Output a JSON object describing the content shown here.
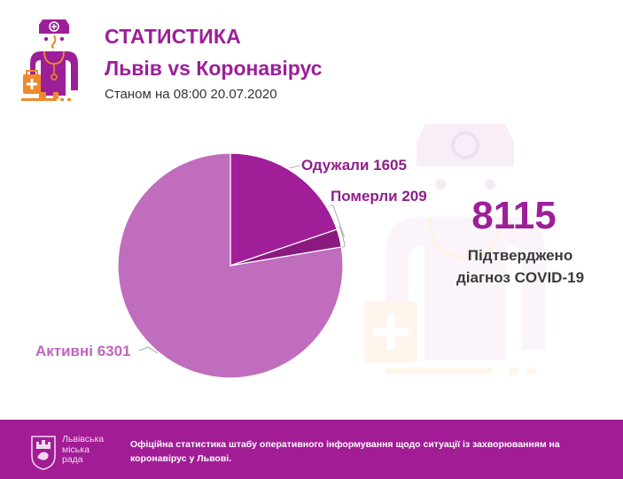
{
  "header": {
    "title": "СТАТИСТИКА",
    "subtitle": "Львів vs Коронавірус",
    "date": "Станом на 08:00 20.07.2020"
  },
  "summary": {
    "total": "8115",
    "caption_line1": "Підтверджено",
    "caption_line2": "діагноз COVID-19"
  },
  "labels": {
    "recovered": "Одужали 1605",
    "died": "Померли 209",
    "active": "Активні 6301"
  },
  "colors": {
    "accent": "#9c1f98",
    "recovered": "#a01f98",
    "died": "#8b1a7f",
    "active": "#c06dbd",
    "footer_bg": "#a21c96",
    "logo_orange": "#ee8a2b"
  },
  "footer": {
    "org_line1": "Львівська",
    "org_line2": "міська",
    "org_line3": "рада",
    "text": "Офіційна статистика штабу оперативного інформування щодо ситуації із захворюванням на коронавірус у Львові."
  },
  "chart_data": {
    "type": "pie",
    "title": "Львів vs Коронавірус",
    "categories": [
      "Одужали",
      "Померли",
      "Активні"
    ],
    "values": [
      1605,
      209,
      6301
    ],
    "total": 8115,
    "colors": [
      "#a01f98",
      "#8b1a7f",
      "#c06dbd"
    ],
    "start_angle_deg": 0,
    "direction": "clockwise",
    "legend": "none (callout labels)"
  }
}
